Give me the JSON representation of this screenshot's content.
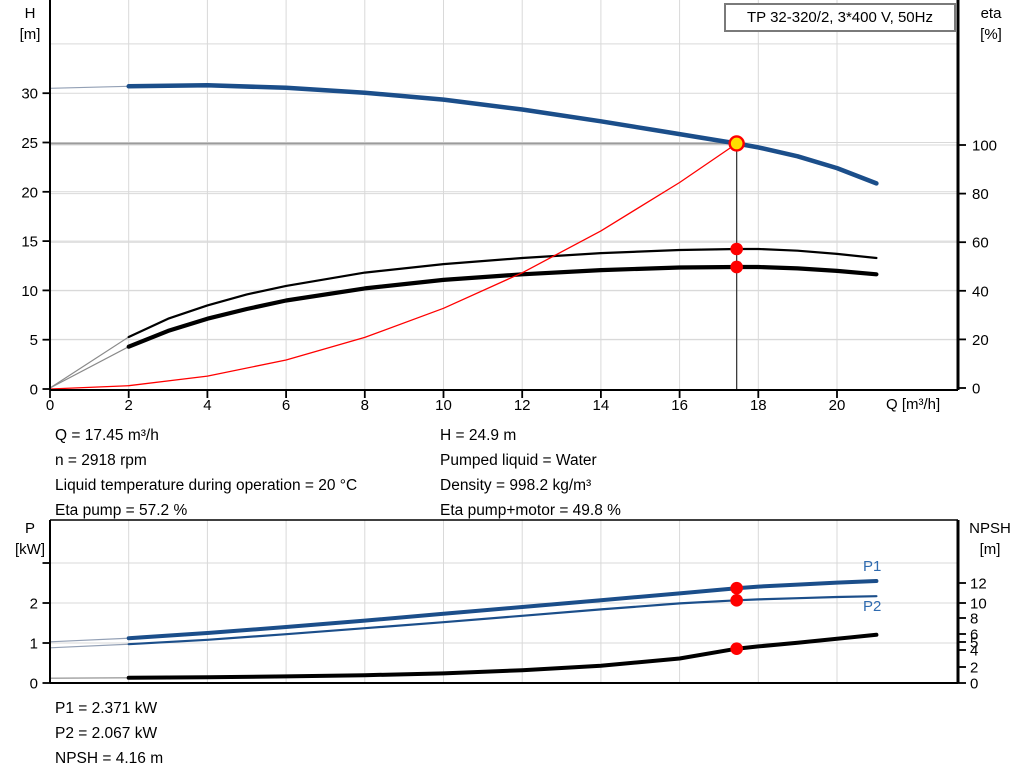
{
  "labels": {
    "h_axis": "H",
    "h_unit": "[m]",
    "eta_axis": "eta",
    "eta_unit": "[%]",
    "q_axis": "Q [m³/h]",
    "p_axis": "P",
    "p_unit": "[kW]",
    "npsh_axis": "NPSH",
    "npsh_unit": "[m]"
  },
  "colors": {
    "curve_blue": "#1b4e8a",
    "label_blue": "#2f6bb0",
    "red": "#ff0000",
    "yellow": "#ffdf00",
    "grid": "#d9d9d9",
    "axis": "#000000",
    "duty_line": "#9b9b9b",
    "duty_vline": "#3c3c3c",
    "lead_gray": "#8a8a8a",
    "lead_blue": "#93a0b5",
    "title_border": "#7a7a7a"
  },
  "info_top_left": [
    "Q = 17.45 m³/h",
    "n = 2918 rpm",
    "Liquid temperature during operation = 20 °C",
    "Eta pump = 57.2 %"
  ],
  "info_top_right": [
    "H = 24.9 m",
    "Pumped liquid = Water",
    "Density = 998.2 kg/m³",
    "Eta pump+motor = 49.8 %"
  ],
  "info_bottom": [
    "P1 = 2.371 kW",
    "P2 = 2.067 kW",
    "NPSH = 4.16 m"
  ],
  "chart_data": [
    {
      "type": "line",
      "title": "TP 32-320/2, 3*400 V, 50Hz",
      "x": {
        "label": "Q [m³/h]",
        "min": 0,
        "max": 23.1,
        "ticks": [
          0,
          2,
          4,
          6,
          8,
          10,
          12,
          14,
          16,
          18,
          20
        ]
      },
      "y_left": {
        "label": "H [m]",
        "min": 0,
        "max": 35,
        "ticks": [
          0,
          5,
          10,
          15,
          20,
          25,
          30
        ]
      },
      "y_right": {
        "label": "eta [%]",
        "min": 0,
        "max": 100,
        "ticks": [
          0,
          20,
          40,
          60,
          80,
          100
        ]
      },
      "grid": true,
      "duty_point": {
        "q": 17.45,
        "h": 24.9,
        "eta_pump": 57.2,
        "eta_pump_motor": 49.8
      },
      "series": [
        {
          "name": "head",
          "axis": "left",
          "points": [
            [
              0,
              30.5
            ],
            [
              2,
              30.7
            ],
            [
              4,
              30.8
            ],
            [
              6,
              30.55
            ],
            [
              8,
              30.05
            ],
            [
              10,
              29.35
            ],
            [
              12,
              28.35
            ],
            [
              14,
              27.15
            ],
            [
              16,
              25.85
            ],
            [
              17.45,
              24.9
            ],
            [
              18,
              24.5
            ],
            [
              19,
              23.6
            ],
            [
              20,
              22.4
            ],
            [
              21,
              20.85
            ]
          ]
        },
        {
          "name": "eta-pump",
          "axis": "right",
          "points": [
            [
              0,
              0
            ],
            [
              2,
              21
            ],
            [
              3,
              28.5
            ],
            [
              4,
              34
            ],
            [
              5,
              38.5
            ],
            [
              6,
              42
            ],
            [
              8,
              47.5
            ],
            [
              10,
              51
            ],
            [
              12,
              53.5
            ],
            [
              14,
              55.5
            ],
            [
              16,
              56.8
            ],
            [
              17.45,
              57.2
            ],
            [
              18,
              57.2
            ],
            [
              19,
              56.5
            ],
            [
              20,
              55.2
            ],
            [
              21,
              53.5
            ]
          ]
        },
        {
          "name": "eta-pump-motor",
          "axis": "right",
          "points": [
            [
              0,
              0
            ],
            [
              2,
              17
            ],
            [
              3,
              23.5
            ],
            [
              4,
              28.5
            ],
            [
              5,
              32.5
            ],
            [
              6,
              36
            ],
            [
              8,
              41
            ],
            [
              10,
              44.5
            ],
            [
              12,
              46.8
            ],
            [
              14,
              48.5
            ],
            [
              16,
              49.6
            ],
            [
              17.45,
              49.8
            ],
            [
              18,
              49.8
            ],
            [
              19,
              49.2
            ],
            [
              20,
              48.2
            ],
            [
              21,
              46.8
            ]
          ]
        },
        {
          "name": "system-curve",
          "axis": "left",
          "points": [
            [
              0,
              0
            ],
            [
              2,
              0.33
            ],
            [
              4,
              1.31
            ],
            [
              6,
              2.94
            ],
            [
              8,
              5.23
            ],
            [
              10,
              8.18
            ],
            [
              12,
              11.78
            ],
            [
              14,
              16.03
            ],
            [
              16,
              20.94
            ],
            [
              17.45,
              24.9
            ]
          ]
        }
      ]
    },
    {
      "type": "line",
      "x": {
        "label": "Q [m³/h]",
        "min": 0,
        "max": 23.1,
        "ticks": [
          0,
          2,
          4,
          6,
          8,
          10,
          12,
          14,
          16,
          18,
          20
        ]
      },
      "y_left": {
        "label": "P [kW]",
        "min": 0,
        "max": 4,
        "ticks": [
          0,
          1,
          2,
          3
        ],
        "tick_labels": [
          "0",
          "1",
          "2",
          ""
        ]
      },
      "y_right": {
        "label": "NPSH [m]",
        "min": 0,
        "max": 12,
        "tick_labels": [
          "12",
          "10",
          "8",
          "6",
          "5",
          "4",
          "2",
          "0"
        ]
      },
      "grid": true,
      "duty_point": {
        "q": 17.45,
        "p1": 2.371,
        "p2": 2.067,
        "npsh": 4.16
      },
      "series_labels": [
        {
          "text": "P1"
        },
        {
          "text": "P2"
        }
      ],
      "series": [
        {
          "name": "P1",
          "axis": "left",
          "points": [
            [
              0,
              1.03
            ],
            [
              2,
              1.12
            ],
            [
              4,
              1.25
            ],
            [
              6,
              1.4
            ],
            [
              8,
              1.56
            ],
            [
              10,
              1.73
            ],
            [
              12,
              1.9
            ],
            [
              14,
              2.07
            ],
            [
              16,
              2.24
            ],
            [
              17.45,
              2.371
            ],
            [
              18,
              2.41
            ],
            [
              19,
              2.46
            ],
            [
              20,
              2.51
            ],
            [
              21,
              2.55
            ]
          ]
        },
        {
          "name": "P2",
          "axis": "left",
          "points": [
            [
              0,
              0.88
            ],
            [
              2,
              0.97
            ],
            [
              4,
              1.08
            ],
            [
              6,
              1.22
            ],
            [
              8,
              1.37
            ],
            [
              10,
              1.52
            ],
            [
              12,
              1.68
            ],
            [
              14,
              1.84
            ],
            [
              16,
              1.99
            ],
            [
              17.45,
              2.067
            ],
            [
              18,
              2.09
            ],
            [
              19,
              2.12
            ],
            [
              20,
              2.15
            ],
            [
              21,
              2.17
            ]
          ]
        },
        {
          "name": "NPSH",
          "axis": "right",
          "points": [
            [
              0,
              0.6
            ],
            [
              2,
              0.65
            ],
            [
              4,
              0.72
            ],
            [
              6,
              0.82
            ],
            [
              8,
              0.97
            ],
            [
              10,
              1.2
            ],
            [
              12,
              1.6
            ],
            [
              14,
              2.15
            ],
            [
              16,
              3.0
            ],
            [
              17.45,
              4.16
            ],
            [
              18,
              4.45
            ],
            [
              19,
              4.9
            ],
            [
              20,
              5.4
            ],
            [
              21,
              5.9
            ]
          ]
        }
      ]
    }
  ]
}
